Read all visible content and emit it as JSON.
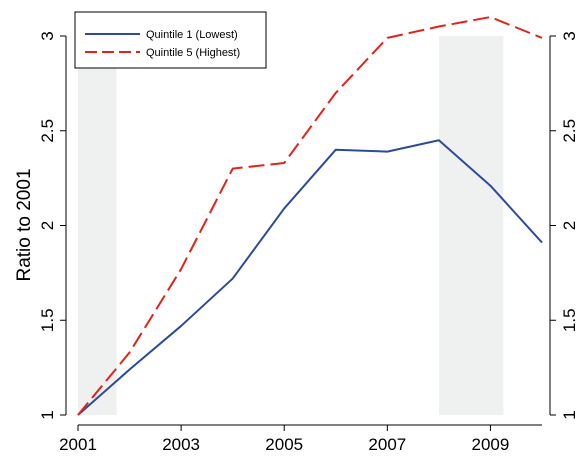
{
  "chart_data": {
    "type": "line",
    "ylabel": "Ratio to 2001",
    "x": [
      2001,
      2002,
      2003,
      2004,
      2005,
      2006,
      2007,
      2008,
      2009,
      2010
    ],
    "xticks": [
      "2001",
      "2003",
      "2005",
      "2007",
      "2009"
    ],
    "yticks": [
      "1",
      "1.5",
      "2",
      "2.5",
      "3"
    ],
    "xlim": [
      2001,
      2010
    ],
    "ylim": [
      1,
      3
    ],
    "right_axis_mirrors_left": true,
    "shaded_periods": [
      [
        2001,
        2001.75
      ],
      [
        2008,
        2009.25
      ]
    ],
    "shade_color": "#eff1f0",
    "legend_position": "top-left",
    "series": [
      {
        "name": "Quintile 1 (Lowest)",
        "color": "#2c4b9c",
        "dash": "solid",
        "values": [
          1.0,
          1.24,
          1.47,
          1.72,
          2.09,
          2.4,
          2.39,
          2.45,
          2.21,
          1.91
        ]
      },
      {
        "name": "Quintile 5 (Highest)",
        "color": "#e2231a",
        "dash": "dashed",
        "values": [
          1.0,
          1.33,
          1.77,
          2.3,
          2.33,
          2.7,
          2.99,
          3.05,
          3.1,
          2.99
        ]
      }
    ]
  }
}
